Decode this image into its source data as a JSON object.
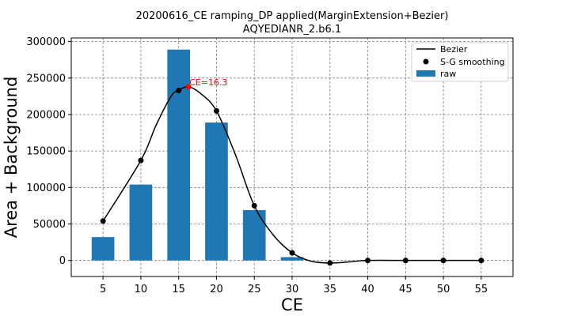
{
  "chart_data": {
    "type": "bar",
    "title": "20200616_CE ramping_DP applied(MarginExtension+Bezier)",
    "subtitle": "AQYEDIANR_2.b6.1",
    "xlabel": "CE",
    "ylabel": "Area + Background",
    "xlim": [
      0.8,
      59.2
    ],
    "ylim": [
      -22000,
      305000
    ],
    "xticks": [
      5,
      10,
      15,
      20,
      25,
      30,
      35,
      40,
      45,
      50,
      55
    ],
    "xtick_labels": [
      "5",
      "10",
      "15",
      "20",
      "25",
      "30",
      "35",
      "40",
      "45",
      "50",
      "55"
    ],
    "yticks": [
      0,
      50000,
      100000,
      150000,
      200000,
      250000,
      300000
    ],
    "ytick_labels": [
      "0",
      "50000",
      "100000",
      "150000",
      "200000",
      "250000",
      "300000"
    ],
    "grid": true,
    "legend_position": "top-right",
    "bar_width": 3,
    "series": [
      {
        "name": "raw",
        "type": "bar",
        "color": "#1f77b4",
        "x": [
          5,
          10,
          15,
          20,
          25,
          30,
          35,
          40,
          45,
          50,
          55
        ],
        "values": [
          32000,
          104000,
          289000,
          189000,
          69000,
          4500,
          0,
          0,
          0,
          0,
          0
        ]
      },
      {
        "name": "S-G smoothing",
        "type": "scatter",
        "color": "#000000",
        "x": [
          5,
          10,
          15,
          20,
          25,
          30,
          35,
          40,
          45,
          50,
          55
        ],
        "values": [
          54000,
          137000,
          233000,
          205000,
          75000,
          10500,
          -3500,
          0,
          0,
          0,
          0
        ]
      },
      {
        "name": "Bezier",
        "type": "line",
        "color": "#000000",
        "x": [
          5,
          10,
          12,
          14,
          15,
          16.3,
          18,
          20,
          22.5,
          25,
          27.5,
          30,
          32.5,
          35,
          37.5,
          40,
          45,
          50,
          55
        ],
        "values": [
          54000,
          137000,
          185000,
          225000,
          233000,
          238000,
          228000,
          205000,
          145000,
          75000,
          35000,
          10500,
          -1000,
          -3500,
          -2000,
          0,
          0,
          0,
          0
        ]
      }
    ],
    "annotation": {
      "text": "CE=16.3",
      "x": 16.3,
      "y": 238000,
      "color": "#ff0000"
    }
  }
}
